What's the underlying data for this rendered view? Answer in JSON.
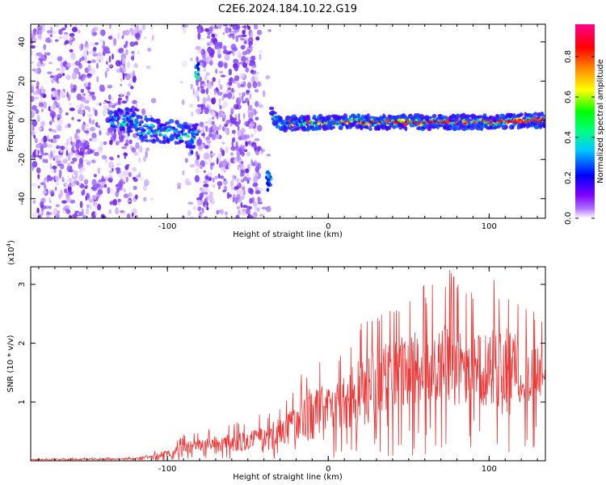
{
  "title": "C2E6.2024.184.10.22.G19",
  "colors": {
    "line": "#f03535",
    "axis": "#000000",
    "background": "#ffffff"
  },
  "chart_data": [
    {
      "type": "heatmap",
      "description_of_content": "spectrogram",
      "xlabel": "Height of straight line (km)",
      "ylabel": "Frequency (Hz)",
      "xlim": [
        -185,
        135
      ],
      "ylim": [
        -50,
        49
      ],
      "xticks": [
        -100,
        0,
        100
      ],
      "yticks": [
        -40,
        -20,
        0,
        20,
        40
      ],
      "colorbar": {
        "label": "Normalized spectral amplitude",
        "range": [
          0,
          0.96
        ],
        "ticks": [
          0.0,
          0.2,
          0.4,
          0.6,
          0.8
        ],
        "colormap": [
          "#ffffff",
          "#7d00ff",
          "#0000ff",
          "#00ffff",
          "#00ff00",
          "#ffff00",
          "#ff8000",
          "#ff0000",
          "#ff00a0"
        ]
      },
      "ridge": [
        {
          "x": -118,
          "freq": -4
        },
        {
          "x": -100,
          "freq": -6
        },
        {
          "x": -88,
          "freq": -8
        },
        {
          "x": -82,
          "freq": 26
        },
        {
          "x": -38,
          "freq": -30
        },
        {
          "x": -36,
          "freq": 4
        },
        {
          "x": -30,
          "freq": -2
        },
        {
          "x": 0,
          "freq": -1
        },
        {
          "x": 50,
          "freq": -1
        },
        {
          "x": 100,
          "freq": -1
        },
        {
          "x": 135,
          "freq": 0
        }
      ]
    },
    {
      "type": "line",
      "xlabel": "Height of straight line (km)",
      "ylabel": "SNR (10 * v/v)",
      "yscale_label": "(x10",
      "yscale_exp": "4",
      "yscale_close": ")",
      "xlim": [
        -185,
        135
      ],
      "ylim": [
        0,
        3.3
      ],
      "xticks": [
        -100,
        0,
        100
      ],
      "yticks": [
        1,
        2,
        3
      ],
      "envelope": {
        "x": [
          -185,
          -120,
          -110,
          -100,
          -90,
          -80,
          -70,
          -60,
          -50,
          -40,
          -30,
          -20,
          -10,
          0,
          10,
          20,
          30,
          40,
          50,
          60,
          70,
          75,
          80,
          90,
          100,
          110,
          120,
          130,
          135
        ],
        "mean": [
          0.02,
          0.03,
          0.08,
          0.12,
          0.22,
          0.25,
          0.28,
          0.3,
          0.35,
          0.4,
          0.5,
          0.6,
          0.8,
          0.9,
          1.0,
          1.15,
          1.3,
          1.5,
          1.55,
          1.6,
          1.6,
          1.7,
          1.6,
          1.6,
          1.55,
          1.5,
          1.5,
          1.5,
          1.55
        ],
        "peak": [
          0.04,
          0.06,
          0.15,
          0.25,
          0.45,
          0.5,
          0.6,
          0.65,
          0.75,
          0.8,
          1.0,
          1.3,
          1.9,
          1.7,
          2.0,
          2.5,
          2.7,
          2.8,
          2.9,
          3.0,
          3.0,
          3.3,
          3.1,
          2.9,
          3.0,
          3.3,
          2.8,
          2.6,
          2.2
        ]
      }
    }
  ]
}
